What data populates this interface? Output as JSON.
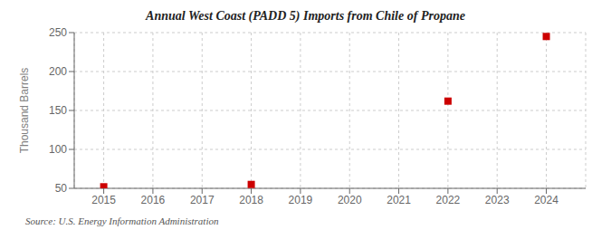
{
  "chart_data": {
    "type": "scatter",
    "title": "Annual West Coast (PADD 5) Imports from Chile of Propane",
    "y_label": "Thousand Barrels",
    "annotations": [
      "Source: U.S. Energy Information Administration"
    ],
    "x": [
      2015,
      2018,
      2022,
      2024
    ],
    "values": [
      52,
      55,
      162,
      245
    ],
    "color": "#cc0000",
    "marker": "square",
    "xlim": [
      2014.4,
      2024.8
    ],
    "xticks": [
      2015,
      2016,
      2017,
      2018,
      2019,
      2020,
      2021,
      2022,
      2023,
      2024
    ],
    "ylim": [
      50,
      250
    ],
    "yticks": [
      50,
      100,
      150,
      200,
      250
    ],
    "grid": true
  }
}
